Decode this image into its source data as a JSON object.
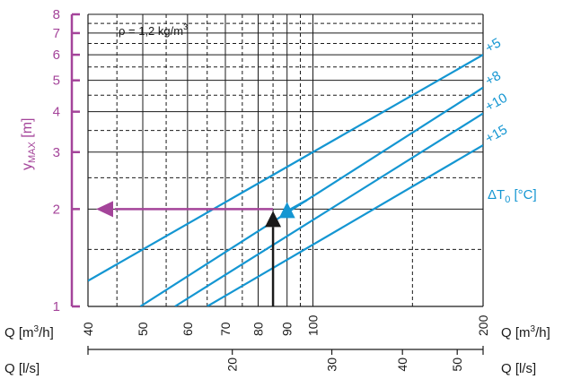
{
  "chart_data": {
    "type": "line",
    "annotation": {
      "text": "ρ = 1,2 kg/m",
      "sup": "3"
    },
    "y_axis": {
      "label": "y",
      "label_sub": "MAX",
      "label_unit": " [m]",
      "scale": "log",
      "range": [
        1,
        8
      ],
      "ticks": [
        1,
        2,
        3,
        4,
        5,
        6,
        7,
        8
      ],
      "color": "#a4449a"
    },
    "x_axis_m3h": {
      "label": "Q [m",
      "label_sup": "3",
      "label_end": "/h]",
      "scale": "log",
      "range": [
        40,
        200
      ],
      "ticks": [
        40,
        50,
        60,
        70,
        80,
        90,
        100,
        200
      ]
    },
    "x_axis_ls": {
      "label": "Q [l/s]",
      "scale": "log",
      "range": [
        11.11,
        55.56
      ],
      "ticks": [
        20,
        30,
        40,
        50
      ]
    },
    "legend_title": {
      "text": "ΔT",
      "sub": "0",
      "unit": " [°C]"
    },
    "series": [
      {
        "name": "+5",
        "x": [
          40,
          200
        ],
        "y": [
          1.2,
          6.0
        ]
      },
      {
        "name": "+8",
        "x": [
          49.5,
          200
        ],
        "y": [
          1.0,
          4.75
        ]
      },
      {
        "name": "+10",
        "x": [
          57,
          200
        ],
        "y": [
          1.0,
          3.95
        ]
      },
      {
        "name": "+15",
        "x": [
          65,
          200
        ],
        "y": [
          1.0,
          3.15
        ]
      }
    ],
    "example_reading": {
      "q_m3h": 85,
      "q_m3h_at_curve": 90,
      "y": 2.0,
      "curve": "+8"
    },
    "colors": {
      "series": "#1496d2",
      "y_axis": "#a4449a",
      "black": "#1a1a1a"
    },
    "grid": true
  }
}
